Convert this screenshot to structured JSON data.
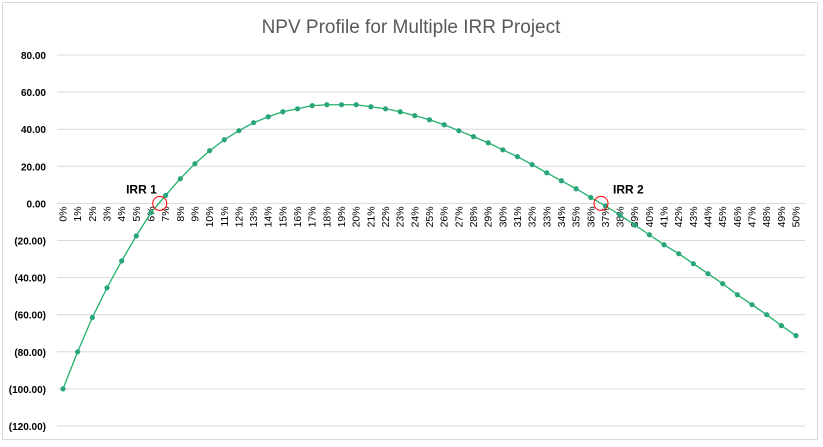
{
  "chart_data": {
    "type": "line",
    "title": "NPV Profile for Multiple IRR Project",
    "xlabel": "",
    "ylabel": "",
    "x": [
      "0%",
      "1%",
      "2%",
      "3%",
      "4%",
      "5%",
      "6%",
      "7%",
      "8%",
      "9%",
      "10%",
      "11%",
      "12%",
      "13%",
      "14%",
      "15%",
      "16%",
      "17%",
      "18%",
      "19%",
      "20%",
      "21%",
      "22%",
      "23%",
      "24%",
      "25%",
      "26%",
      "27%",
      "28%",
      "29%",
      "30%",
      "31%",
      "32%",
      "33%",
      "34%",
      "35%",
      "36%",
      "37%",
      "38%",
      "39%",
      "40%",
      "41%",
      "42%",
      "43%",
      "44%",
      "45%",
      "46%",
      "47%",
      "48%",
      "49%",
      "50%"
    ],
    "values": [
      -100,
      -80,
      -61.5,
      -45.5,
      -31,
      -17.5,
      -5,
      4.3,
      13.3,
      21.4,
      28.4,
      34.3,
      39.2,
      43.5,
      46.7,
      49.4,
      51,
      52.7,
      53.2,
      53.2,
      53.2,
      52.1,
      51,
      49.4,
      47.3,
      45.1,
      42.4,
      39.2,
      36,
      32.7,
      28.9,
      25.2,
      20.9,
      16.5,
      12.2,
      7.9,
      3.2,
      -1.4,
      -6.3,
      -11.7,
      -16.9,
      -22.3,
      -27.1,
      -32.5,
      -37.9,
      -43.3,
      -49.2,
      -54.6,
      -60,
      -65.9,
      -71.3
    ],
    "ylim": [
      -120,
      80
    ],
    "yticks": [
      80,
      60,
      40,
      20,
      0,
      -20,
      -40,
      -60,
      -80,
      -100,
      -120
    ],
    "ytick_labels": [
      "80.00",
      "60.00",
      "40.00",
      "20.00",
      "0.00",
      "(20.00)",
      "(40.00)",
      "(60.00)",
      "(80.00)",
      "(100.00)",
      "(120.00)"
    ],
    "grid": true,
    "legend": "none",
    "annotations": [
      {
        "label": "IRR 1",
        "x_percent": 6.6,
        "y": 0
      },
      {
        "label": "IRR 2",
        "x_percent": 36.7,
        "y": 0
      }
    ],
    "colors": {
      "line": "#21b16a",
      "marker": "#2aa57a",
      "highlight": "#ff0000",
      "grid": "#d9d9d9",
      "title": "#595959"
    }
  }
}
